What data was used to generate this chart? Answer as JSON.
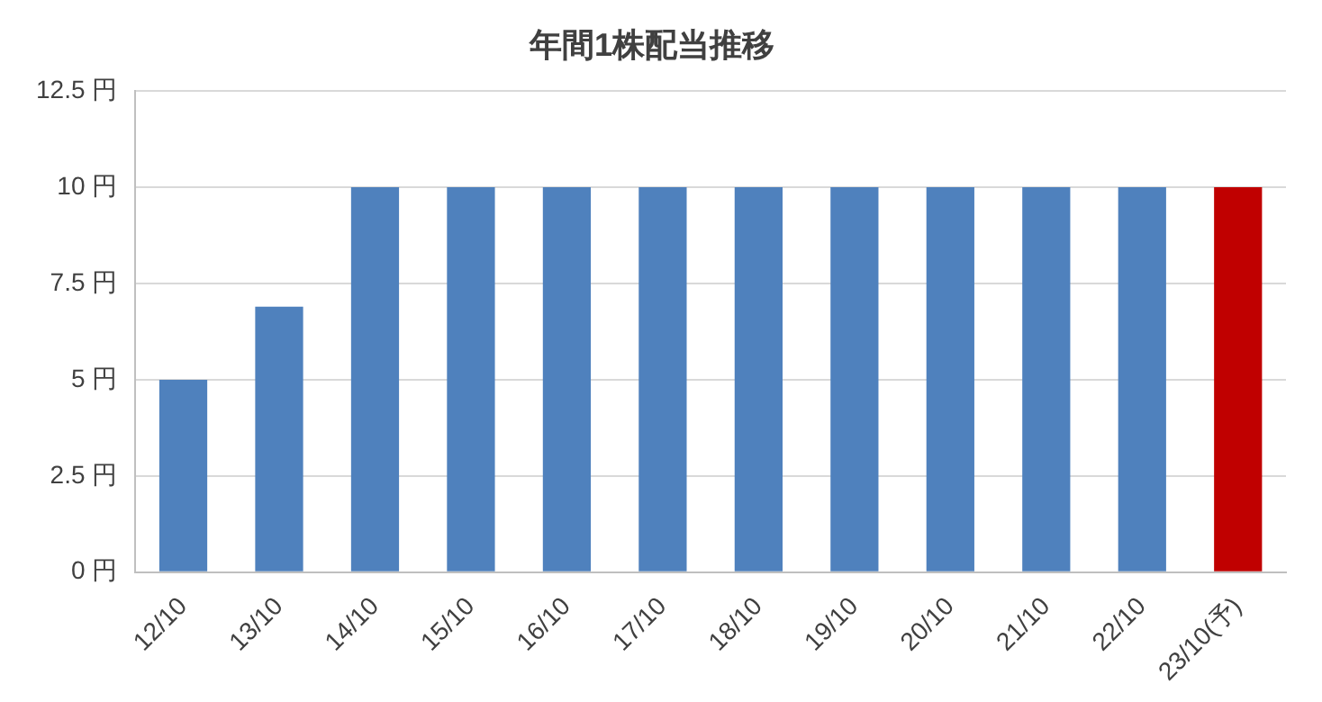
{
  "chart_data": {
    "type": "bar",
    "title": "年間1株配当推移",
    "categories": [
      "12/10",
      "13/10",
      "14/10",
      "15/10",
      "16/10",
      "17/10",
      "18/10",
      "19/10",
      "20/10",
      "21/10",
      "22/10",
      "23/10(予)"
    ],
    "values": [
      5,
      6.9,
      10,
      10,
      10,
      10,
      10,
      10,
      10,
      10,
      10,
      10
    ],
    "colors": [
      "#4f81bd",
      "#4f81bd",
      "#4f81bd",
      "#4f81bd",
      "#4f81bd",
      "#4f81bd",
      "#4f81bd",
      "#4f81bd",
      "#4f81bd",
      "#4f81bd",
      "#4f81bd",
      "#c00000"
    ],
    "ylim": [
      0,
      12.5
    ],
    "yticks": [
      {
        "value": 0,
        "label": "0 円"
      },
      {
        "value": 2.5,
        "label": "2.5 円"
      },
      {
        "value": 5,
        "label": "5 円"
      },
      {
        "value": 7.5,
        "label": "7.5 円"
      },
      {
        "value": 10,
        "label": "10 円"
      },
      {
        "value": 12.5,
        "label": "12.5 円"
      }
    ],
    "grid": "y"
  }
}
